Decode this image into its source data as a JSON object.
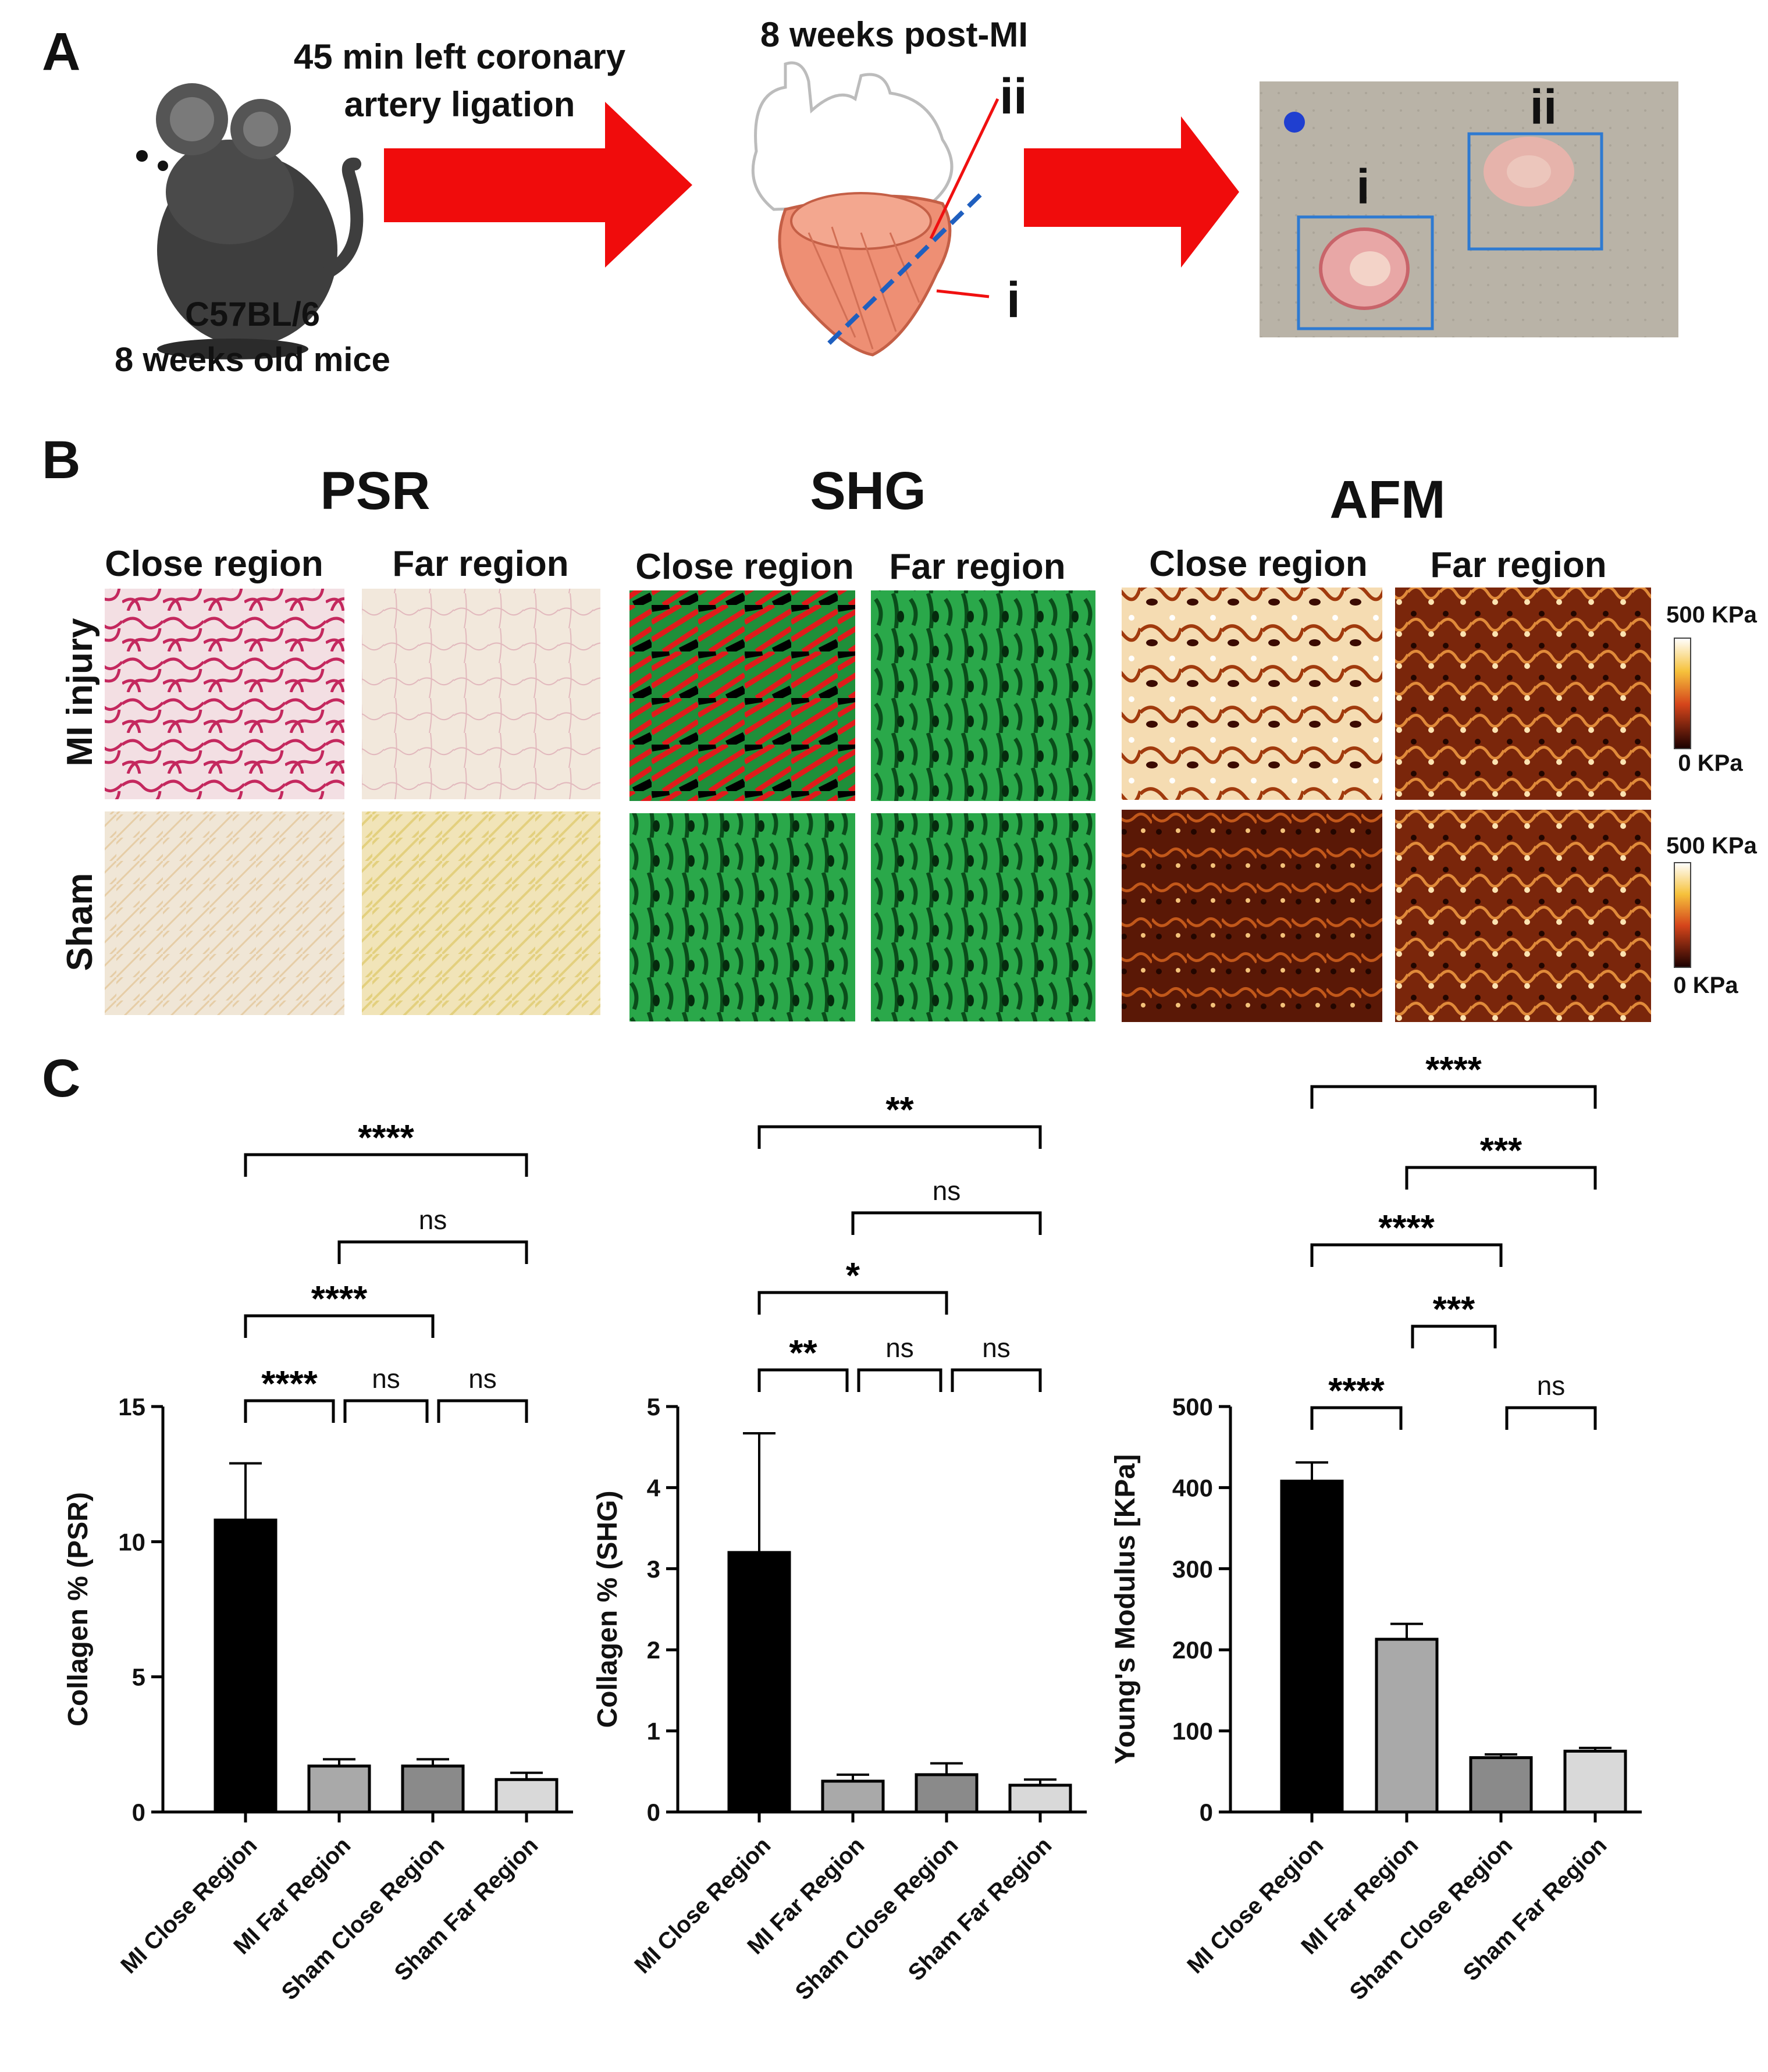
{
  "panelA": {
    "letter": "A",
    "procedure_line1": "45 min left coronary",
    "procedure_line2": "artery ligation",
    "strain": "C57BL/6",
    "age": "8 weeks old mice",
    "timepoint": "8 weeks post-MI",
    "marker_ii": "ii",
    "marker_i": "i",
    "photo_label_i": "i",
    "photo_label_ii": "ii"
  },
  "panelB": {
    "letter": "B",
    "groups": [
      {
        "title": "PSR",
        "close": "Close region",
        "far": "Far region"
      },
      {
        "title": "SHG",
        "close": "Close region",
        "far": "Far region"
      },
      {
        "title": "AFM",
        "close": "Close region",
        "far": "Far region"
      }
    ],
    "rows": [
      "MI injury",
      "Sham"
    ],
    "colorbar_max": "500 KPa",
    "colorbar_min": "0 KPa"
  },
  "panelC": {
    "letter": "C"
  },
  "chart_data": [
    {
      "type": "bar",
      "categories": [
        "MI Close Region",
        "MI Far Region",
        "Sham Close Region",
        "Sham Far Region"
      ],
      "values": [
        10.8,
        1.7,
        1.7,
        1.2
      ],
      "errors": [
        2.1,
        0.25,
        0.25,
        0.25
      ],
      "colors": [
        "#000000",
        "#a9a9a9",
        "#8a8a8a",
        "#d9d9d9"
      ],
      "ylabel": "Collagen % (PSR)",
      "ylim": [
        0,
        15
      ],
      "yticks": [
        0,
        5,
        10,
        15
      ],
      "comparisons": [
        {
          "from": 0,
          "to": 3,
          "label": "****"
        },
        {
          "from": 1,
          "to": 3,
          "label": "ns"
        },
        {
          "from": 0,
          "to": 2,
          "label": "****"
        },
        {
          "from": 0,
          "to": 1,
          "label": "****"
        },
        {
          "from": 1,
          "to": 2,
          "label": "ns"
        },
        {
          "from": 2,
          "to": 3,
          "label": "ns"
        }
      ]
    },
    {
      "type": "bar",
      "categories": [
        "MI Close Region",
        "MI Far Region",
        "Sham Close Region",
        "Sham Far Region"
      ],
      "values": [
        3.2,
        0.38,
        0.46,
        0.33
      ],
      "errors": [
        1.47,
        0.08,
        0.14,
        0.07
      ],
      "colors": [
        "#000000",
        "#a9a9a9",
        "#8a8a8a",
        "#d9d9d9"
      ],
      "ylabel": "Collagen % (SHG)",
      "ylim": [
        0,
        5
      ],
      "yticks": [
        0,
        1,
        2,
        3,
        4,
        5
      ],
      "comparisons": [
        {
          "from": 0,
          "to": 3,
          "label": "**"
        },
        {
          "from": 1,
          "to": 3,
          "label": "ns"
        },
        {
          "from": 0,
          "to": 2,
          "label": "*"
        },
        {
          "from": 0,
          "to": 1,
          "label": "**"
        },
        {
          "from": 1,
          "to": 2,
          "label": "ns"
        },
        {
          "from": 2,
          "to": 3,
          "label": "ns"
        }
      ]
    },
    {
      "type": "bar",
      "categories": [
        "MI Close Region",
        "MI Far Region",
        "Sham Close Region",
        "Sham Far Region"
      ],
      "values": [
        408,
        213,
        67,
        75
      ],
      "errors": [
        23,
        19,
        4,
        4
      ],
      "colors": [
        "#000000",
        "#a9a9a9",
        "#8a8a8a",
        "#d9d9d9"
      ],
      "ylabel": "Young's Modulus [KPa]",
      "ylim": [
        0,
        500
      ],
      "yticks": [
        0,
        100,
        200,
        300,
        400,
        500
      ],
      "comparisons": [
        {
          "from": 0,
          "to": 3,
          "label": "****"
        },
        {
          "from": 1,
          "to": 3,
          "label": "***"
        },
        {
          "from": 0,
          "to": 2,
          "label": "****"
        },
        {
          "from": 1,
          "to": 2,
          "label": "***"
        },
        {
          "from": 0,
          "to": 1,
          "label": "****"
        },
        {
          "from": 2,
          "to": 3,
          "label": "ns"
        }
      ]
    }
  ]
}
